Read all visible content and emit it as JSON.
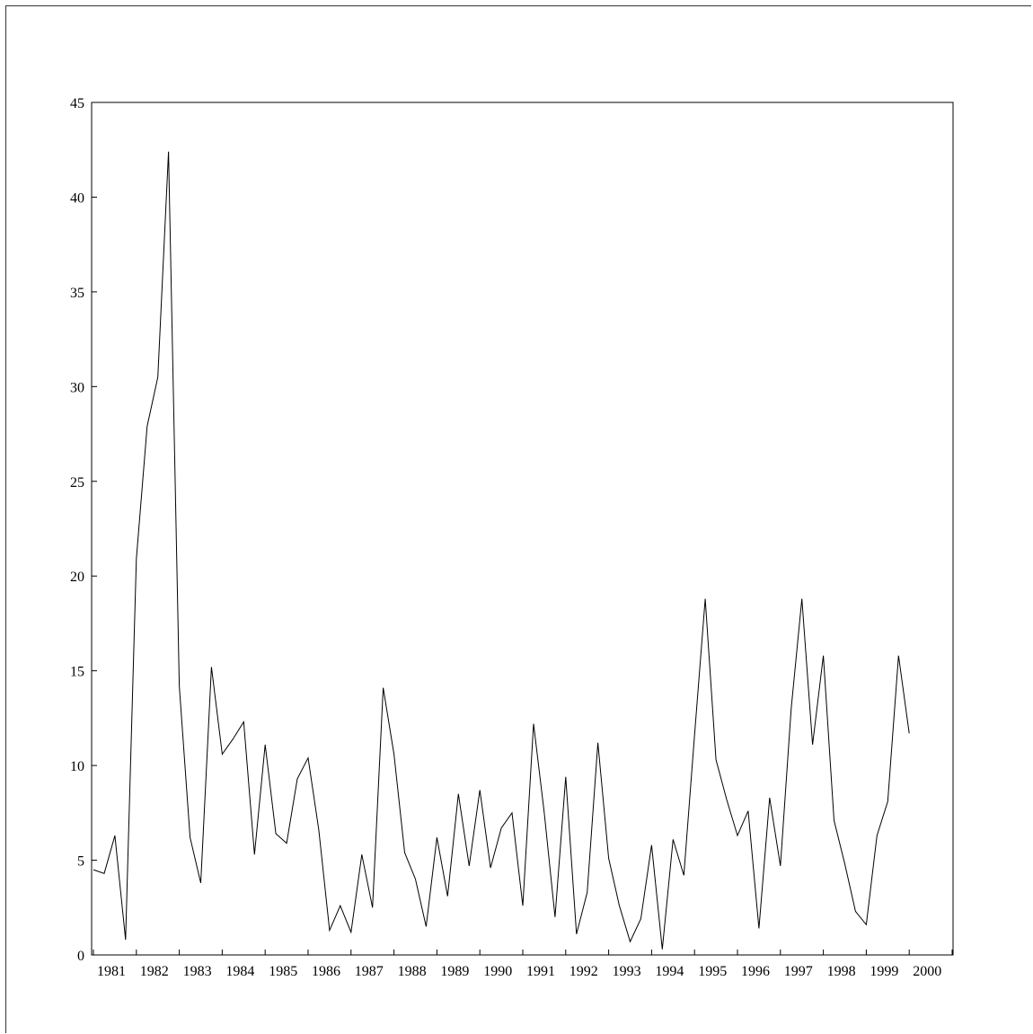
{
  "chart_data": {
    "type": "line",
    "title": "",
    "xlabel": "",
    "ylabel": "",
    "ylim": [
      0,
      45
    ],
    "yticks": [
      "0",
      "5",
      "10",
      "15",
      "20",
      "25",
      "30",
      "35",
      "40",
      "45"
    ],
    "xtick_labels": [
      "1981",
      "1982",
      "1983",
      "1984",
      "1985",
      "1986",
      "1987",
      "1988",
      "1989",
      "1990",
      "1991",
      "1992",
      "1993",
      "1994",
      "1995",
      "1996",
      "1997",
      "1998",
      "1999",
      "2000"
    ],
    "frequency": "quarterly",
    "grid": false,
    "series": [
      {
        "values": [
          4.5,
          4.3,
          6.3,
          0.8,
          20.9,
          27.9,
          30.5,
          42.4,
          14.2,
          6.2,
          3.8,
          15.2,
          10.6,
          11.4,
          12.3,
          5.3,
          11.1,
          6.4,
          5.9,
          9.3,
          10.4,
          6.6,
          1.3,
          2.6,
          1.2,
          5.3,
          2.5,
          14.1,
          10.6,
          5.4,
          4.0,
          1.5,
          6.2,
          3.1,
          8.5,
          4.7,
          8.7,
          4.6,
          6.7,
          7.5,
          2.6,
          12.2,
          7.5,
          2.0,
          9.4,
          1.1,
          3.3,
          11.2,
          5.1,
          2.6,
          0.7,
          1.9,
          5.8,
          0.3,
          6.1,
          4.2,
          11.6,
          18.8,
          10.3,
          8.2,
          6.3,
          7.6,
          1.4,
          8.3,
          4.7,
          13.0,
          18.8,
          11.1,
          15.8,
          7.1,
          4.8,
          2.3,
          1.6,
          6.3,
          8.1,
          15.8,
          11.7
        ]
      }
    ]
  }
}
